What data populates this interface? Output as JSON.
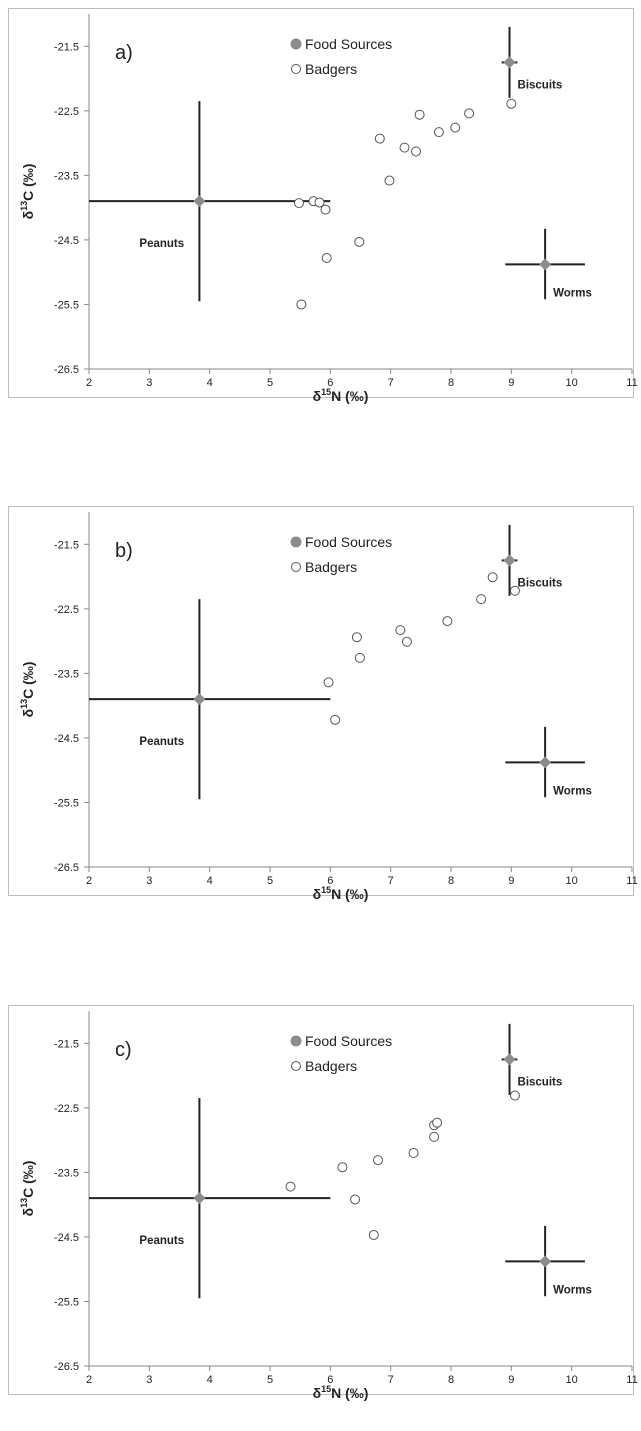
{
  "colors": {
    "axis": "#888888",
    "ink": "#222222",
    "food_marker": "#8c8c8c",
    "badger_fill": "#ffffff",
    "badger_stroke": "#555555"
  },
  "chart_data": [
    {
      "type": "scatter",
      "panel_label": "a)",
      "xlabel": "δ15N (‰)",
      "ylabel": "δ13C (‰)",
      "xlim": [
        2,
        11
      ],
      "ylim": [
        -26.5,
        -21
      ],
      "xticks": [
        "2",
        "3",
        "4",
        "5",
        "6",
        "7",
        "8",
        "9",
        "10",
        "11"
      ],
      "yticks": [
        "-21.5",
        "-22.5",
        "-23.5",
        "-24.5",
        "-25.5",
        "-26.5"
      ],
      "legend": [
        "Food Sources",
        "Badgers"
      ],
      "legend_position": "top-center",
      "food_sources": [
        {
          "label": "Peanuts",
          "x": 3.83,
          "y": -23.9,
          "x_range": [
            2.0,
            6.0
          ],
          "y_range": [
            -22.35,
            -25.45
          ]
        },
        {
          "label": "Biscuits",
          "x": 8.97,
          "y": -21.75,
          "x_range": [
            8.84,
            9.1
          ],
          "y_range": [
            -21.2,
            -22.3
          ]
        },
        {
          "label": "Worms",
          "x": 9.56,
          "y": -24.88,
          "x_range": [
            8.9,
            10.22
          ],
          "y_range": [
            -24.33,
            -25.42
          ]
        }
      ],
      "badgers": [
        {
          "x": 5.48,
          "y": -23.93
        },
        {
          "x": 5.72,
          "y": -23.9
        },
        {
          "x": 5.82,
          "y": -23.92
        },
        {
          "x": 5.92,
          "y": -24.03
        },
        {
          "x": 5.94,
          "y": -24.78
        },
        {
          "x": 5.52,
          "y": -25.5
        },
        {
          "x": 6.48,
          "y": -24.53
        },
        {
          "x": 6.82,
          "y": -22.93
        },
        {
          "x": 6.98,
          "y": -23.58
        },
        {
          "x": 7.23,
          "y": -23.07
        },
        {
          "x": 7.42,
          "y": -23.13
        },
        {
          "x": 7.48,
          "y": -22.56
        },
        {
          "x": 7.8,
          "y": -22.83
        },
        {
          "x": 8.07,
          "y": -22.76
        },
        {
          "x": 8.3,
          "y": -22.54
        },
        {
          "x": 9.0,
          "y": -22.39
        }
      ]
    },
    {
      "type": "scatter",
      "panel_label": "b)",
      "xlabel": "δ15N (‰)",
      "ylabel": "δ13C (‰)",
      "xlim": [
        2,
        11
      ],
      "ylim": [
        -26.5,
        -21
      ],
      "xticks": [
        "2",
        "3",
        "4",
        "5",
        "6",
        "7",
        "8",
        "9",
        "10",
        "11"
      ],
      "yticks": [
        "-21.5",
        "-22.5",
        "-23.5",
        "-24.5",
        "-25.5",
        "-26.5"
      ],
      "legend": [
        "Food Sources",
        "Badgers"
      ],
      "legend_position": "top-center",
      "food_sources": [
        {
          "label": "Peanuts",
          "x": 3.83,
          "y": -23.9,
          "x_range": [
            2.0,
            6.0
          ],
          "y_range": [
            -22.35,
            -25.45
          ]
        },
        {
          "label": "Biscuits",
          "x": 8.97,
          "y": -21.75,
          "x_range": [
            8.84,
            9.1
          ],
          "y_range": [
            -21.2,
            -22.3
          ]
        },
        {
          "label": "Worms",
          "x": 9.56,
          "y": -24.88,
          "x_range": [
            8.9,
            10.22
          ],
          "y_range": [
            -24.33,
            -25.42
          ]
        }
      ],
      "badgers": [
        {
          "x": 5.97,
          "y": -23.64
        },
        {
          "x": 6.08,
          "y": -24.22
        },
        {
          "x": 6.44,
          "y": -22.94
        },
        {
          "x": 6.49,
          "y": -23.26
        },
        {
          "x": 7.16,
          "y": -22.83
        },
        {
          "x": 7.27,
          "y": -23.01
        },
        {
          "x": 7.94,
          "y": -22.69
        },
        {
          "x": 8.5,
          "y": -22.35
        },
        {
          "x": 8.69,
          "y": -22.01
        },
        {
          "x": 9.06,
          "y": -22.22
        }
      ]
    },
    {
      "type": "scatter",
      "panel_label": "c)",
      "xlabel": "δ15N (‰)",
      "ylabel": "δ13C (‰)",
      "xlim": [
        2,
        11
      ],
      "ylim": [
        -26.5,
        -21
      ],
      "xticks": [
        "2",
        "3",
        "4",
        "5",
        "6",
        "7",
        "8",
        "9",
        "10",
        "11"
      ],
      "yticks": [
        "-21.5",
        "-22.5",
        "-23.5",
        "-24.5",
        "-25.5",
        "-26.5"
      ],
      "legend": [
        "Food Sources",
        "Badgers"
      ],
      "legend_position": "top-center",
      "food_sources": [
        {
          "label": "Peanuts",
          "x": 3.83,
          "y": -23.9,
          "x_range": [
            2.0,
            6.0
          ],
          "y_range": [
            -22.35,
            -25.45
          ]
        },
        {
          "label": "Biscuits",
          "x": 8.97,
          "y": -21.75,
          "x_range": [
            8.84,
            9.1
          ],
          "y_range": [
            -21.2,
            -22.3
          ]
        },
        {
          "label": "Worms",
          "x": 9.56,
          "y": -24.88,
          "x_range": [
            8.9,
            10.22
          ],
          "y_range": [
            -24.33,
            -25.42
          ]
        }
      ],
      "badgers": [
        {
          "x": 5.34,
          "y": -23.72
        },
        {
          "x": 6.2,
          "y": -23.42
        },
        {
          "x": 6.41,
          "y": -23.92
        },
        {
          "x": 6.72,
          "y": -24.47
        },
        {
          "x": 6.79,
          "y": -23.31
        },
        {
          "x": 7.38,
          "y": -23.2
        },
        {
          "x": 7.72,
          "y": -22.95
        },
        {
          "x": 7.72,
          "y": -22.77
        },
        {
          "x": 7.77,
          "y": -22.73
        },
        {
          "x": 9.06,
          "y": -22.31
        }
      ]
    }
  ]
}
